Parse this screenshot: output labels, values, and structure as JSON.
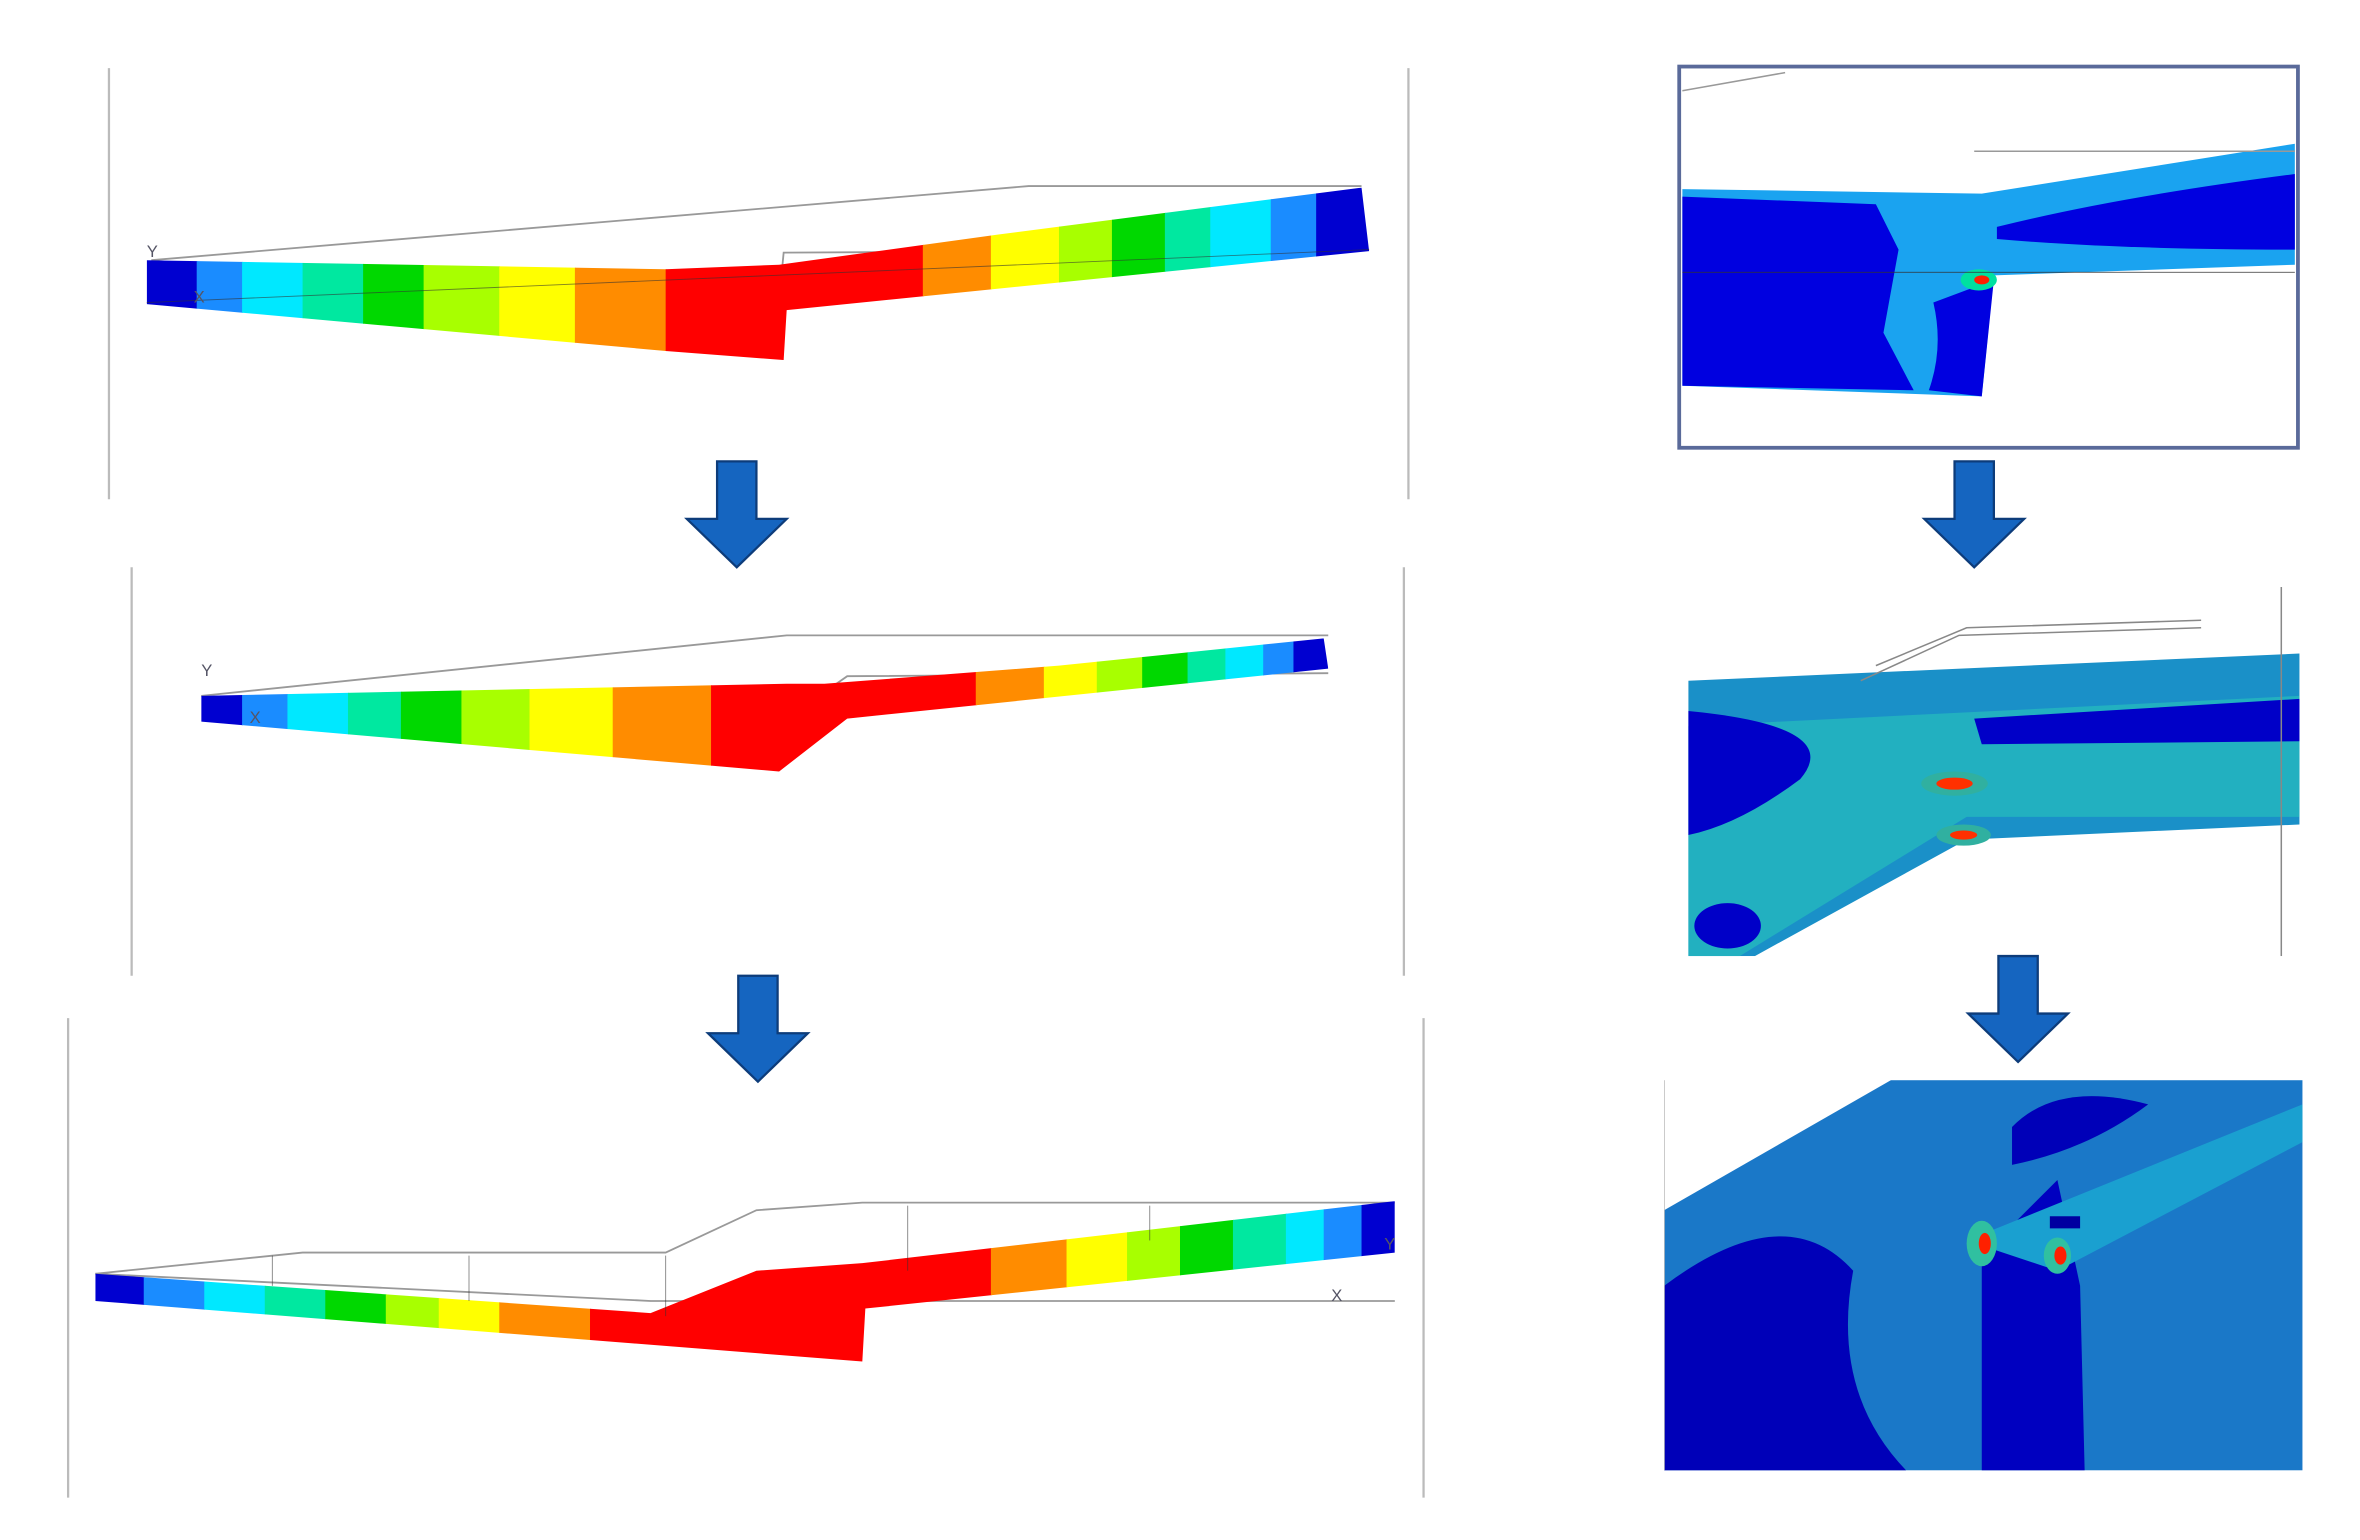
{
  "panels": [
    {
      "triad": {
        "y": "Y",
        "x": "X"
      }
    },
    {
      "triad": {
        "y": "Y",
        "x": "X"
      }
    },
    {
      "triad": {
        "y": "Y",
        "x": "X"
      }
    }
  ]
}
